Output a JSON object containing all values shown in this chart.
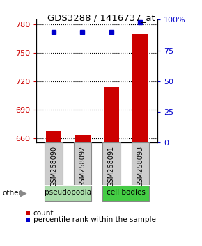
{
  "title": "GDS3288 / 1416737_at",
  "samples": [
    "GSM258090",
    "GSM258092",
    "GSM258091",
    "GSM258093"
  ],
  "bar_values": [
    667,
    663,
    714,
    770
  ],
  "percentile_values": [
    90,
    90,
    90,
    98
  ],
  "bar_color": "#cc0000",
  "percentile_color": "#0000cc",
  "ylim_left": [
    655,
    785
  ],
  "ylim_right": [
    0,
    100
  ],
  "yticks_left": [
    660,
    690,
    720,
    750,
    780
  ],
  "yticks_right": [
    0,
    25,
    50,
    75,
    100
  ],
  "ytick_labels_right": [
    "0",
    "25",
    "50",
    "75",
    "100%"
  ],
  "groups": [
    {
      "label": "pseudopodia",
      "indices": [
        0,
        1
      ],
      "color": "#aaddaa"
    },
    {
      "label": "cell bodies",
      "indices": [
        2,
        3
      ],
      "color": "#44cc44"
    }
  ],
  "other_label": "other",
  "legend_count_label": "count",
  "legend_pct_label": "percentile rank within the sample",
  "bar_width": 0.55,
  "left_tick_color": "#cc0000",
  "right_tick_color": "#0000cc",
  "xlabel_box_color": "#cccccc",
  "xlabel_box_edge": "#888888"
}
